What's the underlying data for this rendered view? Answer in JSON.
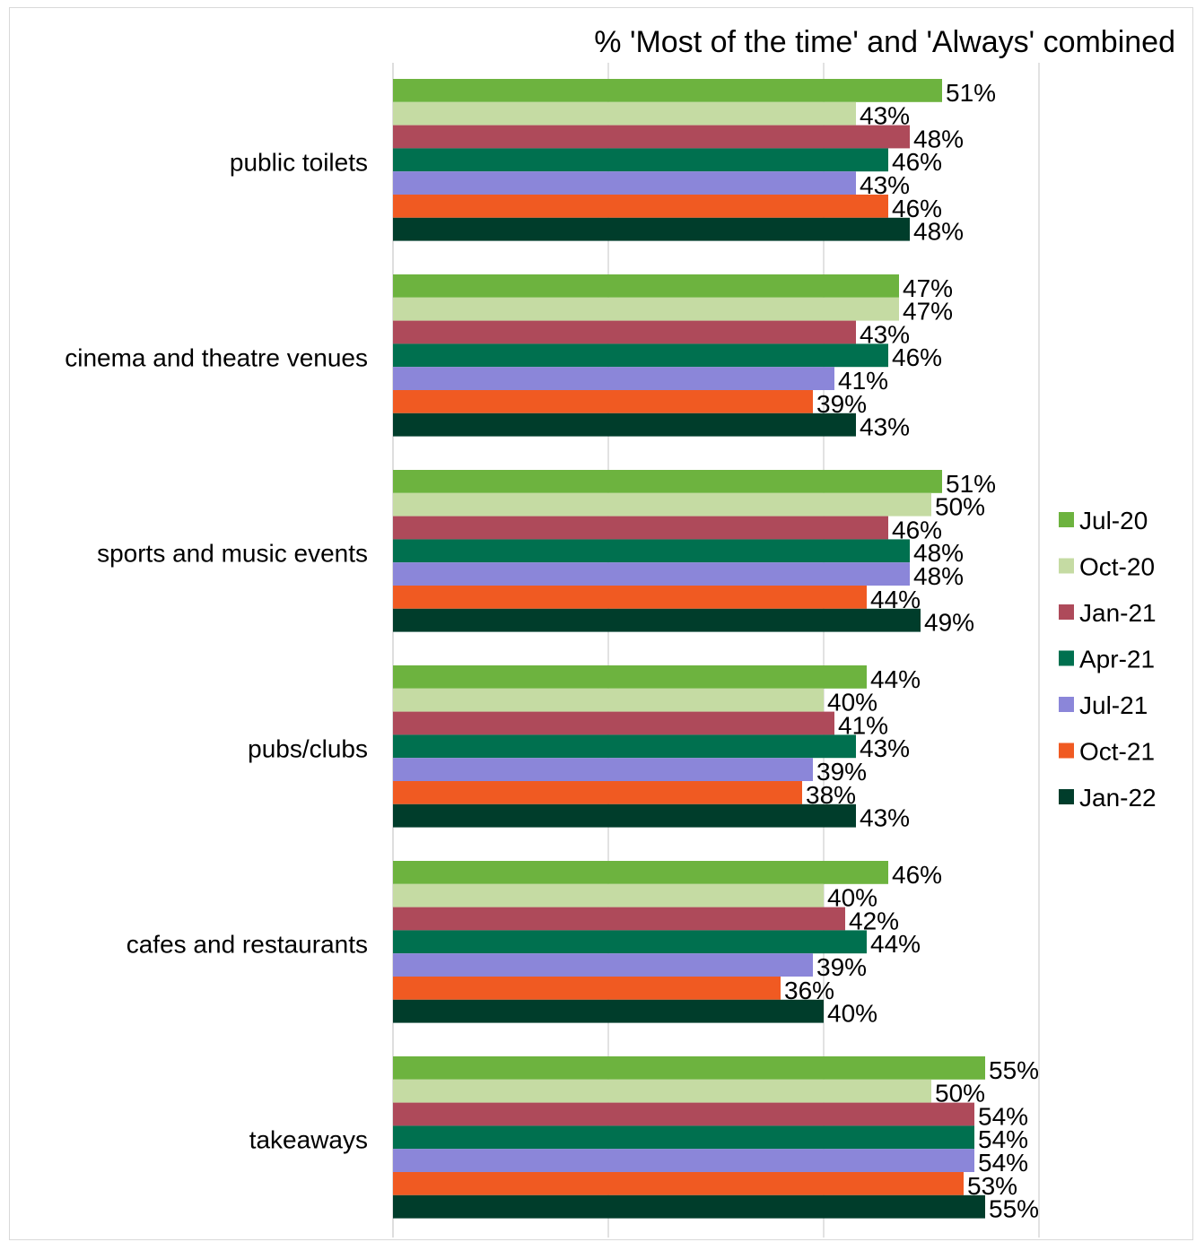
{
  "chart_data": {
    "type": "bar",
    "orientation": "horizontal",
    "title": "% 'Most of the time' and 'Always' combined",
    "categories": [
      "public toilets",
      "cinema and theatre venues",
      "sports and music events",
      "pubs/clubs",
      "cafes and restaurants",
      "takeaways"
    ],
    "series": [
      {
        "name": "Jul-20",
        "color": "#6db33f",
        "values": [
          51,
          47,
          51,
          44,
          46,
          55
        ]
      },
      {
        "name": "Oct-20",
        "color": "#c5dba3",
        "values": [
          43,
          47,
          50,
          40,
          40,
          50
        ]
      },
      {
        "name": "Jan-21",
        "color": "#ae4a5a",
        "values": [
          48,
          43,
          46,
          41,
          42,
          54
        ]
      },
      {
        "name": "Apr-21",
        "color": "#00704f",
        "values": [
          46,
          46,
          48,
          43,
          44,
          54
        ]
      },
      {
        "name": "Jul-21",
        "color": "#8b86d9",
        "values": [
          43,
          41,
          48,
          39,
          39,
          54
        ]
      },
      {
        "name": "Oct-21",
        "color": "#f05a22",
        "values": [
          46,
          39,
          44,
          38,
          36,
          53
        ]
      },
      {
        "name": "Jan-22",
        "color": "#003d2b",
        "values": [
          48,
          43,
          49,
          43,
          40,
          55
        ]
      }
    ],
    "value_suffix": "%",
    "xlim": [
      0,
      60
    ],
    "gridlines": [
      0,
      20,
      40,
      60
    ],
    "grid": true,
    "legend": "right"
  }
}
